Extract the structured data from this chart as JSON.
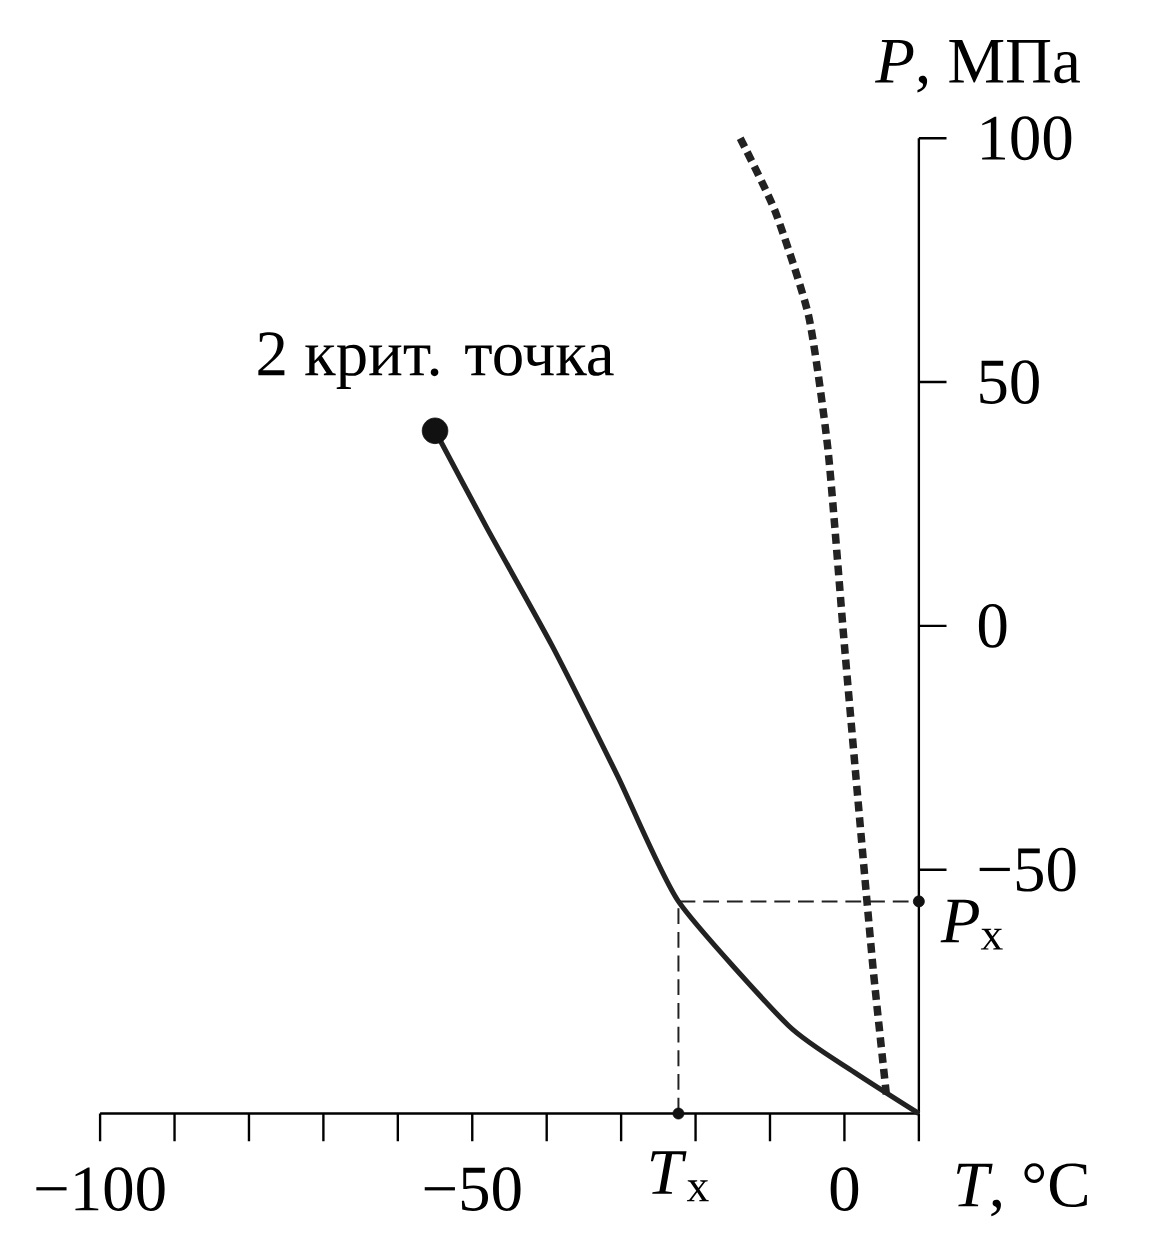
{
  "chart_data": {
    "type": "line",
    "xlabel": "*T*, °C",
    "ylabel": "*P*, МПа",
    "xlim": [
      -100,
      10
    ],
    "ylim": [
      -100,
      100
    ],
    "xticks": [
      {
        "value": -100,
        "label": "−100"
      },
      {
        "value": -90,
        "label": null
      },
      {
        "value": -80,
        "label": null
      },
      {
        "value": -70,
        "label": null
      },
      {
        "value": -60,
        "label": null
      },
      {
        "value": -50,
        "label": "−50"
      },
      {
        "value": -40,
        "label": null
      },
      {
        "value": -30,
        "label": null
      },
      {
        "value": -20,
        "label": null
      },
      {
        "value": -10,
        "label": null
      },
      0,
      {
        "value": 10,
        "label": null
      }
    ],
    "yticks": [
      {
        "value": -50,
        "label": "−50"
      },
      0,
      50,
      100
    ],
    "grid": false,
    "marker": "none",
    "series": [
      {
        "x": [
          -55,
          -48,
          -39.3,
          -30.5,
          -22.3,
          -7.5,
          1.3,
          10
        ],
        "values": [
          40,
          20,
          -4,
          -30.7,
          -56.5,
          -82,
          -91.5,
          -100
        ],
        "color": "#222222",
        "line_style": "solid"
      },
      {
        "x": [
          -14,
          -9.3,
          -4.8,
          -2.2,
          0,
          2.3,
          3.9,
          5.7
        ],
        "values": [
          100,
          85,
          63.5,
          36,
          -4,
          -44,
          -71,
          -97
        ],
        "color": "#222222",
        "line_style": "dotted"
      },
      {
        "x": [
          -22.3,
          -22.3,
          10
        ],
        "values": [
          -100,
          -56.5,
          -56.5
        ],
        "color": "#222222",
        "line_style": "dashed"
      },
      {
        "type": "scatter",
        "x": [
          -55
        ],
        "values": [
          40
        ],
        "color": "#111111",
        "marker": "circle"
      },
      {
        "type": "scatter",
        "x": [
          -22.3,
          10
        ],
        "values": [
          -100,
          -56.5
        ],
        "color": "#111111",
        "marker": "circle"
      }
    ],
    "annotations": [
      {
        "text": "2 крит. точка",
        "x": -55,
        "y": 40
      },
      {
        "text": "*T*$_{x}$",
        "x": -22.3,
        "y": -100
      },
      {
        "text": "*P*$_{x}$",
        "x": 10,
        "y": -56.5
      }
    ]
  }
}
